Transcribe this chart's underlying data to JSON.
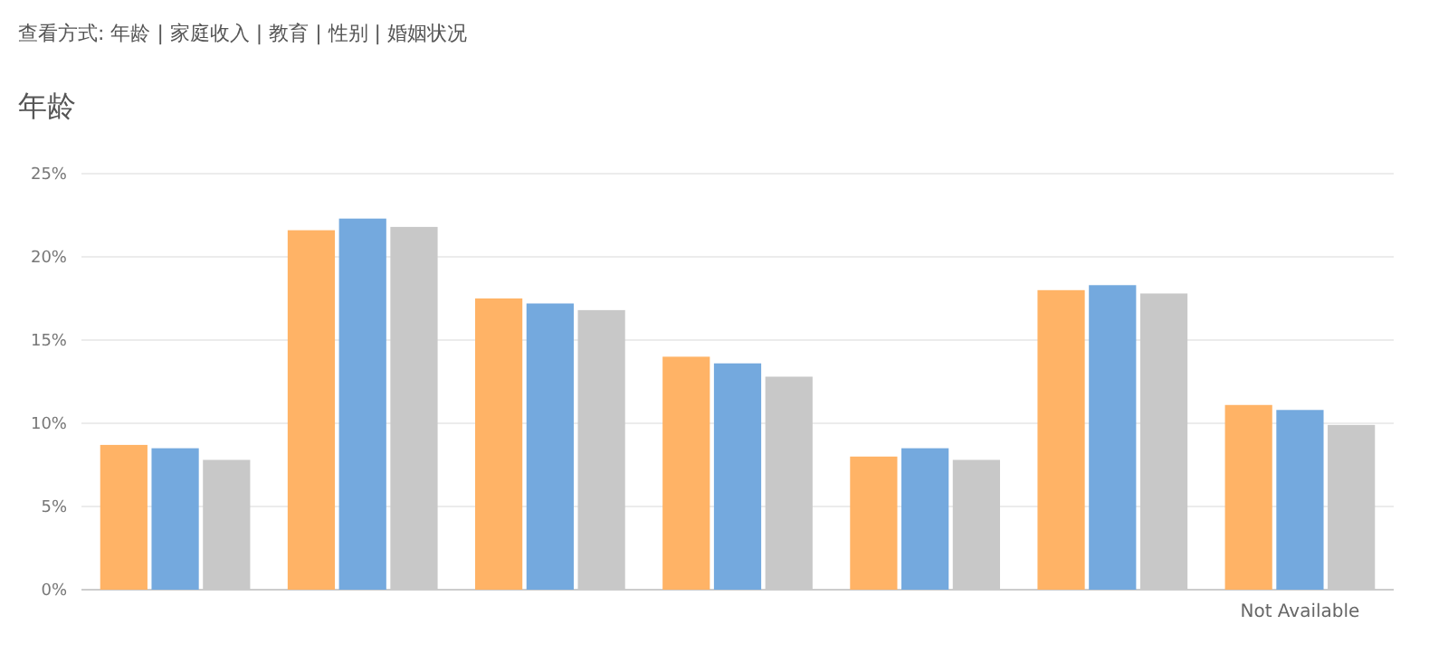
{
  "chart_data": {
    "type": "bar",
    "title": "年龄",
    "annotations": [
      "查看方式: 年龄 | 家庭收入 | 教育 | 性别 | 婚姻状况"
    ],
    "categories": [
      null,
      null,
      null,
      null,
      null,
      null,
      "Not Available"
    ],
    "series": [
      {
        "color": "#ffb366",
        "values": [
          8.7,
          21.6,
          17.5,
          14.0,
          8.0,
          18.0,
          11.1
        ]
      },
      {
        "color": "#74a9de",
        "values": [
          8.5,
          22.3,
          17.2,
          13.6,
          8.5,
          18.3,
          10.8
        ]
      },
      {
        "color": "#c8c8c8",
        "values": [
          7.8,
          21.8,
          16.8,
          12.8,
          7.8,
          17.8,
          9.9
        ]
      }
    ],
    "ylim": [
      0,
      25
    ],
    "yticks": [
      {
        "value": 0,
        "label": "0%"
      },
      {
        "value": 5,
        "label": "5%"
      },
      {
        "value": 10,
        "label": "10%"
      },
      {
        "value": 15,
        "label": "15%"
      },
      {
        "value": 20,
        "label": "20%"
      },
      {
        "value": 25,
        "label": "25%"
      }
    ],
    "grid": "y"
  }
}
